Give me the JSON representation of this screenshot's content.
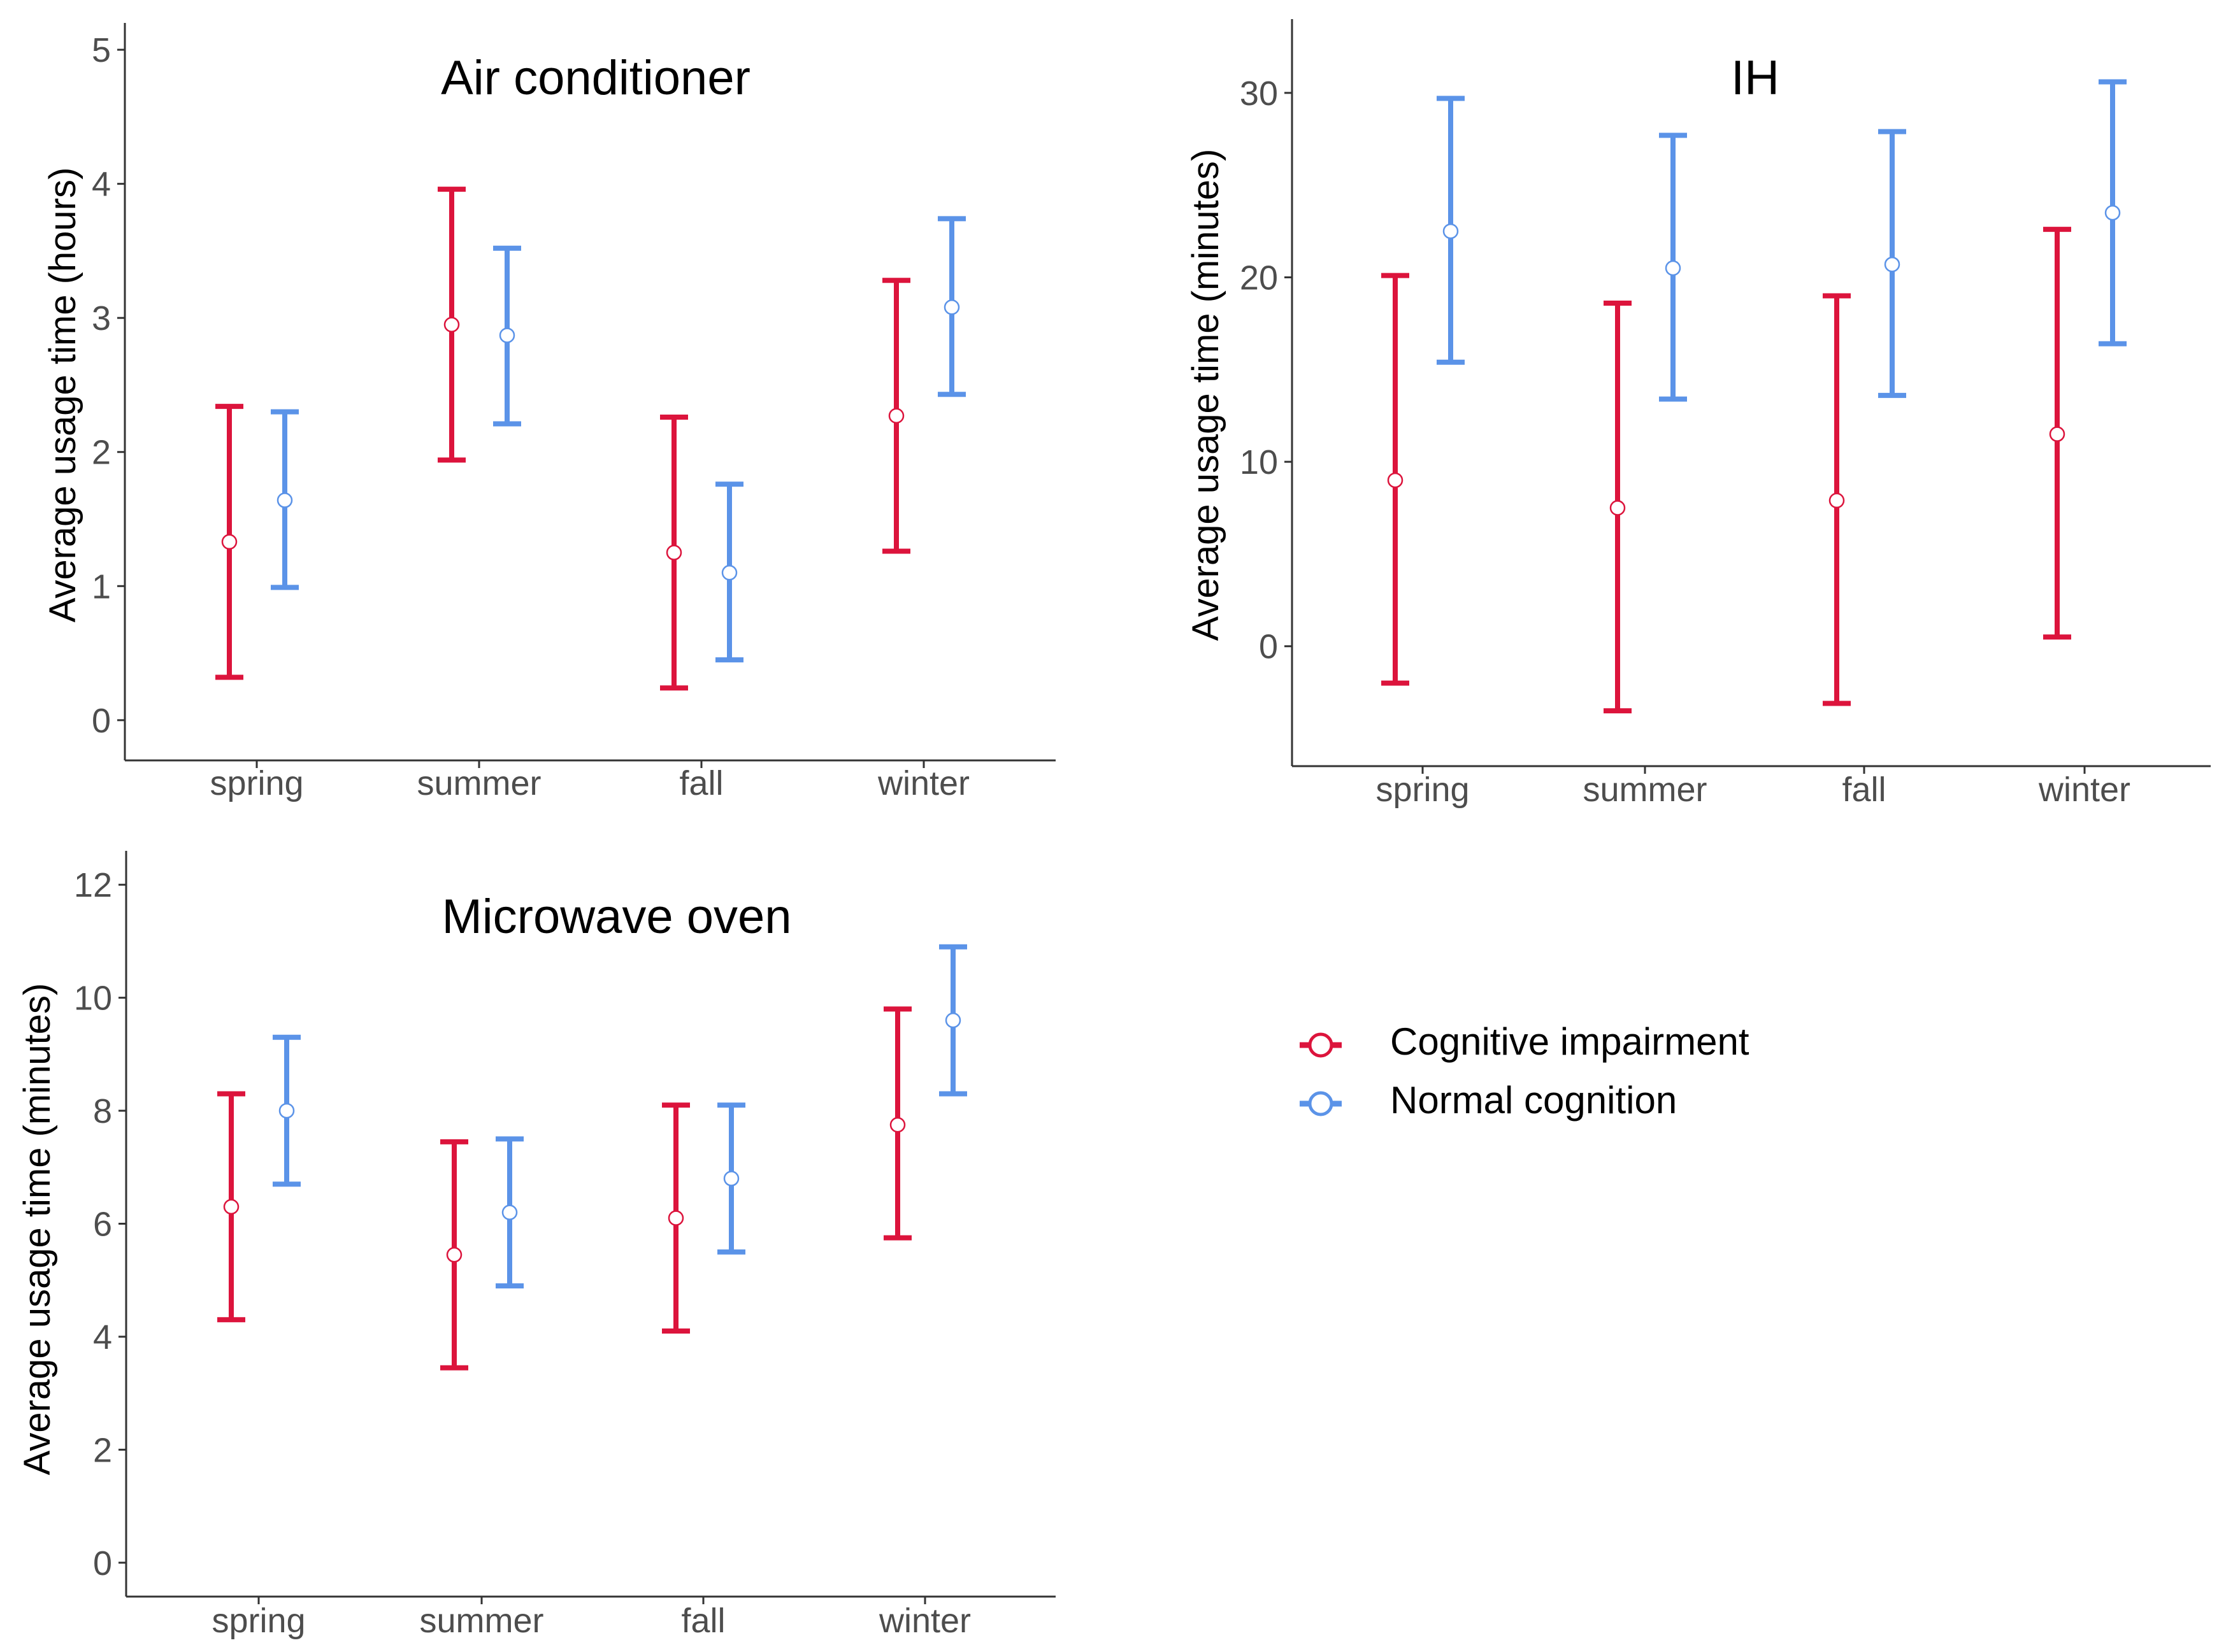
{
  "series_colors": {
    "Cognitive impairment": "#dc143c",
    "Normal cognition": "#5b93e8"
  },
  "legend": {
    "items": [
      {
        "label": "Cognitive impairment",
        "color": "#dc143c"
      },
      {
        "label": "Normal cognition",
        "color": "#5b93e8"
      }
    ]
  },
  "chart_data": [
    {
      "type": "errorbar",
      "title": "Air conditioner",
      "xlabel": "",
      "ylabel": "Average usage time (hours)",
      "categories": [
        "spring",
        "summer",
        "fall",
        "winter"
      ],
      "ylim": [
        -0.3,
        5.2
      ],
      "yticks": [
        0,
        1,
        2,
        3,
        4,
        5
      ],
      "series": [
        {
          "name": "Cognitive impairment",
          "mean": [
            1.33,
            2.95,
            1.25,
            2.27
          ],
          "lower": [
            0.32,
            1.94,
            0.24,
            1.26
          ],
          "upper": [
            2.34,
            3.96,
            2.26,
            3.28
          ]
        },
        {
          "name": "Normal cognition",
          "mean": [
            1.64,
            2.87,
            1.1,
            3.08
          ],
          "lower": [
            0.99,
            2.21,
            0.45,
            2.43
          ],
          "upper": [
            2.3,
            3.52,
            1.76,
            3.74
          ]
        }
      ]
    },
    {
      "type": "errorbar",
      "title": "IH",
      "xlabel": "",
      "ylabel": "Average usage time (minutes)",
      "categories": [
        "spring",
        "summer",
        "fall",
        "winter"
      ],
      "ylim": [
        -6.5,
        34
      ],
      "yticks": [
        0,
        10,
        20,
        30
      ],
      "series": [
        {
          "name": "Cognitive impairment",
          "mean": [
            9.0,
            7.5,
            7.9,
            11.5
          ],
          "lower": [
            -2.0,
            -3.5,
            -3.1,
            0.5
          ],
          "upper": [
            20.1,
            18.6,
            19.0,
            22.6
          ]
        },
        {
          "name": "Normal cognition",
          "mean": [
            22.5,
            20.5,
            20.7,
            23.5
          ],
          "lower": [
            15.4,
            13.4,
            13.6,
            16.4
          ],
          "upper": [
            29.7,
            27.7,
            27.9,
            30.6
          ]
        }
      ]
    },
    {
      "type": "errorbar",
      "title": "Microwave  oven",
      "xlabel": "",
      "ylabel": "Average usage time (minutes)",
      "categories": [
        "spring",
        "summer",
        "fall",
        "winter"
      ],
      "ylim": [
        -0.6,
        12.6
      ],
      "yticks": [
        0,
        2,
        4,
        6,
        8,
        10,
        12
      ],
      "series": [
        {
          "name": "Cognitive impairment",
          "mean": [
            6.3,
            5.45,
            6.1,
            7.75
          ],
          "lower": [
            4.3,
            3.45,
            4.1,
            5.75
          ],
          "upper": [
            8.3,
            7.45,
            8.1,
            9.8
          ]
        },
        {
          "name": "Normal cognition",
          "mean": [
            8.0,
            6.2,
            6.8,
            9.6
          ],
          "lower": [
            6.7,
            4.9,
            5.5,
            8.3
          ],
          "upper": [
            9.3,
            7.5,
            8.1,
            10.9
          ]
        }
      ]
    }
  ]
}
